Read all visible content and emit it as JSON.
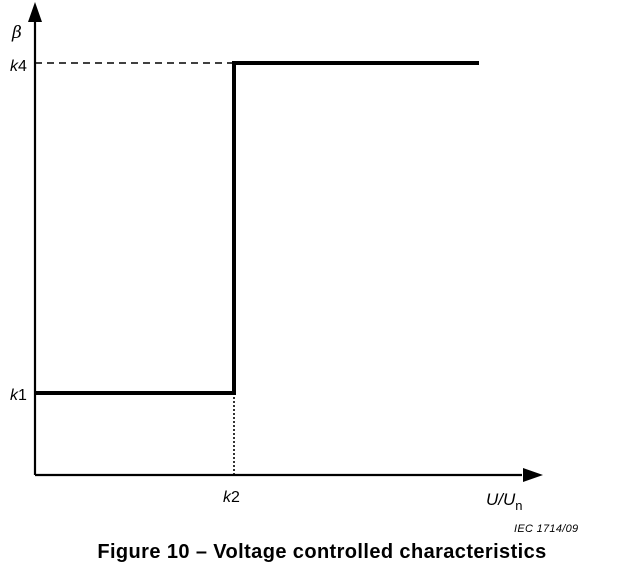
{
  "caption": "Figure 10 – Voltage controlled characteristics",
  "source_tag": "IEC   1714/09",
  "chart_data": {
    "type": "line",
    "title": "Figure 10 – Voltage controlled characteristics",
    "xlabel": {
      "main": "U/U",
      "subscript": "n"
    },
    "ylabel": "β",
    "x_ticks": [
      {
        "prefix": "k",
        "suffix": "2"
      }
    ],
    "y_ticks": [
      {
        "prefix": "k",
        "suffix": "1"
      },
      {
        "prefix": "k",
        "suffix": "4"
      }
    ],
    "series": [
      {
        "x": [
          "0",
          "k2",
          "k2",
          "end"
        ],
        "y": [
          "k1",
          "k1",
          "k4",
          "k4"
        ]
      }
    ],
    "guides": [
      {
        "style": "dashed",
        "from": "y-axis",
        "at": "k4",
        "to": "k2"
      },
      {
        "style": "dotted",
        "from": "x-axis",
        "at": "k2",
        "to": "k1"
      }
    ],
    "step": "hard step from k1 to k4 at k2",
    "grid": false,
    "legend": "none"
  }
}
